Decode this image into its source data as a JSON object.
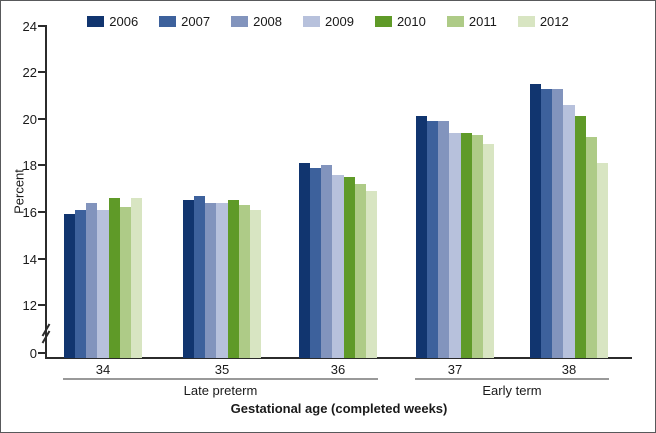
{
  "chart_data": {
    "type": "bar",
    "title": "",
    "ylabel": "Percent",
    "xlabel": "Gestational age (completed weeks)",
    "categories": [
      "34",
      "35",
      "36",
      "37",
      "38"
    ],
    "series": [
      {
        "name": "2006",
        "color": "#11356f",
        "values": [
          15.9,
          16.5,
          18.1,
          20.1,
          21.5
        ]
      },
      {
        "name": "2007",
        "color": "#3d619c",
        "values": [
          16.1,
          16.7,
          17.9,
          19.9,
          21.3
        ]
      },
      {
        "name": "2008",
        "color": "#8294bd",
        "values": [
          16.4,
          16.4,
          18.0,
          19.9,
          21.3
        ]
      },
      {
        "name": "2009",
        "color": "#b7c1dc",
        "values": [
          16.1,
          16.4,
          17.6,
          19.4,
          20.6
        ]
      },
      {
        "name": "2010",
        "color": "#5f9a28",
        "values": [
          16.6,
          16.5,
          17.5,
          19.4,
          20.1
        ]
      },
      {
        "name": "2011",
        "color": "#aecb87",
        "values": [
          16.2,
          16.3,
          17.2,
          19.3,
          19.2
        ]
      },
      {
        "name": "2012",
        "color": "#d8e5c2",
        "values": [
          16.6,
          16.1,
          16.9,
          18.9,
          18.1
        ]
      }
    ],
    "y_axis": {
      "ticks": [
        24,
        22,
        20,
        18,
        16,
        14,
        12,
        0
      ],
      "range_shown": [
        12,
        24
      ],
      "axis_break_between": [
        0,
        12
      ],
      "grid": false
    },
    "category_groups": [
      {
        "label": "Late preterm",
        "categories": [
          "34",
          "35",
          "36"
        ]
      },
      {
        "label": "Early term",
        "categories": [
          "37",
          "38"
        ]
      }
    ],
    "legend_position": "top"
  }
}
